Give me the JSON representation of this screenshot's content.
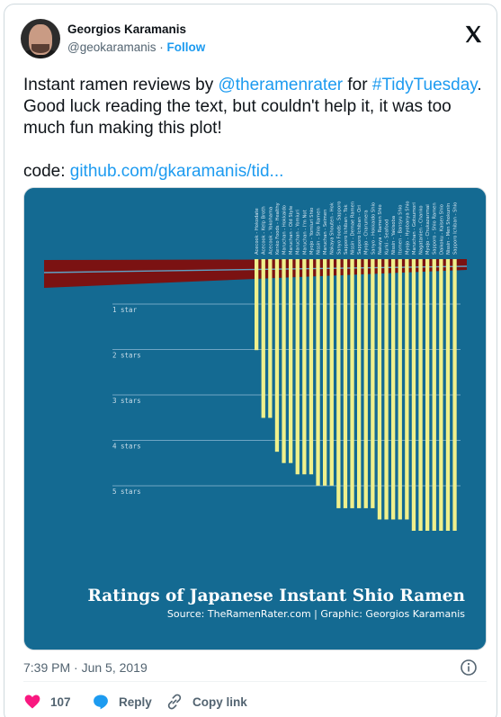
{
  "author": {
    "name": "Georgios Karamanis",
    "handle": "@geokaramanis",
    "separator": "·",
    "follow_label": "Follow"
  },
  "tweet": {
    "line1_prefix": "Instant ramen reviews by ",
    "mention": "@theramenrater",
    "line1_mid": " for ",
    "hashtag": "#TidyTuesday",
    "line1_suffix": ".",
    "line2": "Good luck reading the text, but couldn't help it, it was too",
    "line3": "much fun making this plot!",
    "code_label": "code: ",
    "code_link": "github.com/gkaramanis/tid..."
  },
  "media": {
    "plot_title": "Ratings of Japanese Instant Shio Ramen",
    "plot_caption": "Source: TheRamenRater.com | Graphic: Georgios Karamanis",
    "star_labels": [
      "1 star",
      "2 stars",
      "3 stars",
      "4 stars",
      "5 stars"
    ],
    "ramen_names": [
      "Acecook - Hokodate",
      "Acecook - Kelp Broth",
      "Acecook - Yokohama",
      "Kenko Foods - Healthy",
      "Maruchan - Hokkaido",
      "Maruchan - Old Style",
      "Maruchan - Yomiuri",
      "Maruchan - I'm Not",
      "Myojo - Yomiuri Shio",
      "Nissin - Shio Ramen",
      "Maruchan - Seimen",
      "Nakaya Shouten - Hok",
      "Sanyo Foods - Sapporo",
      "Sapporo Ichiban - Tok",
      "Nissin - Demae Ramen",
      "Sapporo Ichiban - Ori",
      "Myojo - Charumera",
      "Sanyo - Hokkaido Shio",
      "Nakaya - Ramen Shio",
      "Kurki - Seafood",
      "Nissin - Yakisoba",
      "Itomen - Bansyu Shio",
      "Myojo - Hyobanya Shio",
      "Maruchan - Gotsumori",
      "Nagatanien - Chanko",
      "Myojo - Chukazanmai",
      "Sapporo - Shio Ramen",
      "Daikoku - Kaisen Shio",
      "Nissin - Men Shokunin",
      "Sapporo Ichiban - Shio"
    ]
  },
  "chart_data": {
    "type": "bar",
    "title": "Ratings of Japanese Instant Shio Ramen",
    "subtitle": "Source: TheRamenRater.com | Graphic: Georgios Karamanis",
    "categories": [
      "Acecook - Hokodate",
      "Acecook - Kelp Broth",
      "Acecook - Yokohama",
      "Kenko Foods - Healthy",
      "Maruchan - Hokkaido",
      "Maruchan - Old Style",
      "Maruchan - Yomiuri",
      "Maruchan - I'm Not",
      "Myojo - Yomiuri Shio",
      "Nissin - Shio Ramen",
      "Maruchan - Seimen",
      "Nakaya Shouten - Hok",
      "Sanyo Foods - Sapporo",
      "Sapporo Ichiban - Tok",
      "Nissin - Demae Ramen",
      "Sapporo Ichiban - Ori",
      "Myojo - Charumera",
      "Sanyo - Hokkaido Shio",
      "Nakaya - Ramen Shio",
      "Kurki - Seafood",
      "Nissin - Yakisoba",
      "Itomen - Bansyu Shio",
      "Myojo - Hyobanya Shio",
      "Maruchan - Gotsumori",
      "Nagatanien - Chanko",
      "Myojo - Chukazanmai",
      "Sapporo - Shio Ramen",
      "Daikoku - Kaisen Shio",
      "Nissin - Men Shokunin",
      "Sapporo Ichiban - Shio"
    ],
    "values": [
      1,
      2.5,
      2.5,
      3.25,
      3.5,
      3.5,
      3.75,
      3.75,
      3.75,
      4,
      4,
      4,
      4.5,
      4.5,
      4.5,
      4.5,
      4.5,
      4.5,
      4.75,
      4.75,
      4.75,
      4.75,
      4.75,
      5,
      5,
      5,
      5,
      5,
      5,
      5
    ],
    "y_levels": [
      "1 star",
      "2 stars",
      "3 stars",
      "4 stars",
      "5 stars"
    ],
    "ylim": [
      0,
      5
    ],
    "grid": true,
    "colors": {
      "background": "#146a92",
      "bars": "#f0f08c",
      "noodle_band": "#7b1212",
      "gridline": "#6fa5c4"
    }
  }
}
